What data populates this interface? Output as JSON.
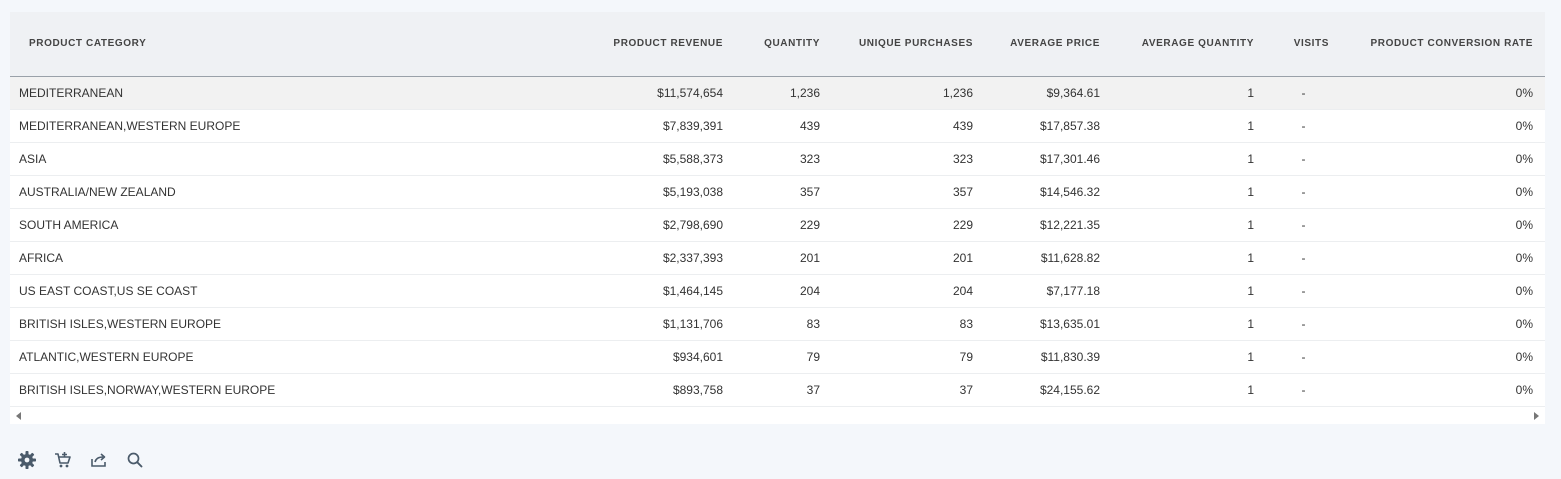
{
  "table": {
    "columns": [
      "PRODUCT CATEGORY",
      "PRODUCT REVENUE",
      "QUANTITY",
      "UNIQUE PURCHASES",
      "AVERAGE PRICE",
      "AVERAGE QUANTITY",
      "VISITS",
      "PRODUCT CONVERSION RATE"
    ],
    "rows": [
      [
        "MEDITERRANEAN",
        "$11,574,654",
        "1,236",
        "1,236",
        "$9,364.61",
        "1",
        "-",
        "0%"
      ],
      [
        "MEDITERRANEAN,WESTERN EUROPE",
        "$7,839,391",
        "439",
        "439",
        "$17,857.38",
        "1",
        "-",
        "0%"
      ],
      [
        "ASIA",
        "$5,588,373",
        "323",
        "323",
        "$17,301.46",
        "1",
        "-",
        "0%"
      ],
      [
        "AUSTRALIA/NEW ZEALAND",
        "$5,193,038",
        "357",
        "357",
        "$14,546.32",
        "1",
        "-",
        "0%"
      ],
      [
        "SOUTH AMERICA",
        "$2,798,690",
        "229",
        "229",
        "$12,221.35",
        "1",
        "-",
        "0%"
      ],
      [
        "AFRICA",
        "$2,337,393",
        "201",
        "201",
        "$11,628.82",
        "1",
        "-",
        "0%"
      ],
      [
        "US EAST COAST,US SE COAST",
        "$1,464,145",
        "204",
        "204",
        "$7,177.18",
        "1",
        "-",
        "0%"
      ],
      [
        "BRITISH ISLES,WESTERN EUROPE",
        "$1,131,706",
        "83",
        "83",
        "$13,635.01",
        "1",
        "-",
        "0%"
      ],
      [
        "ATLANTIC,WESTERN EUROPE",
        "$934,601",
        "79",
        "79",
        "$11,830.39",
        "1",
        "-",
        "0%"
      ],
      [
        "BRITISH ISLES,NORWAY,WESTERN EUROPE",
        "$893,758",
        "37",
        "37",
        "$24,155.62",
        "1",
        "-",
        "0%"
      ]
    ]
  },
  "toolbar": {
    "icons": [
      "gear-icon",
      "add-to-cart-icon",
      "export-icon",
      "search-icon"
    ]
  },
  "colors": {
    "page_background": "#f4f7fb",
    "header_background": "#eff1f4",
    "highlight_row": "#f2f2f2",
    "icon": "#4a5a6a"
  }
}
